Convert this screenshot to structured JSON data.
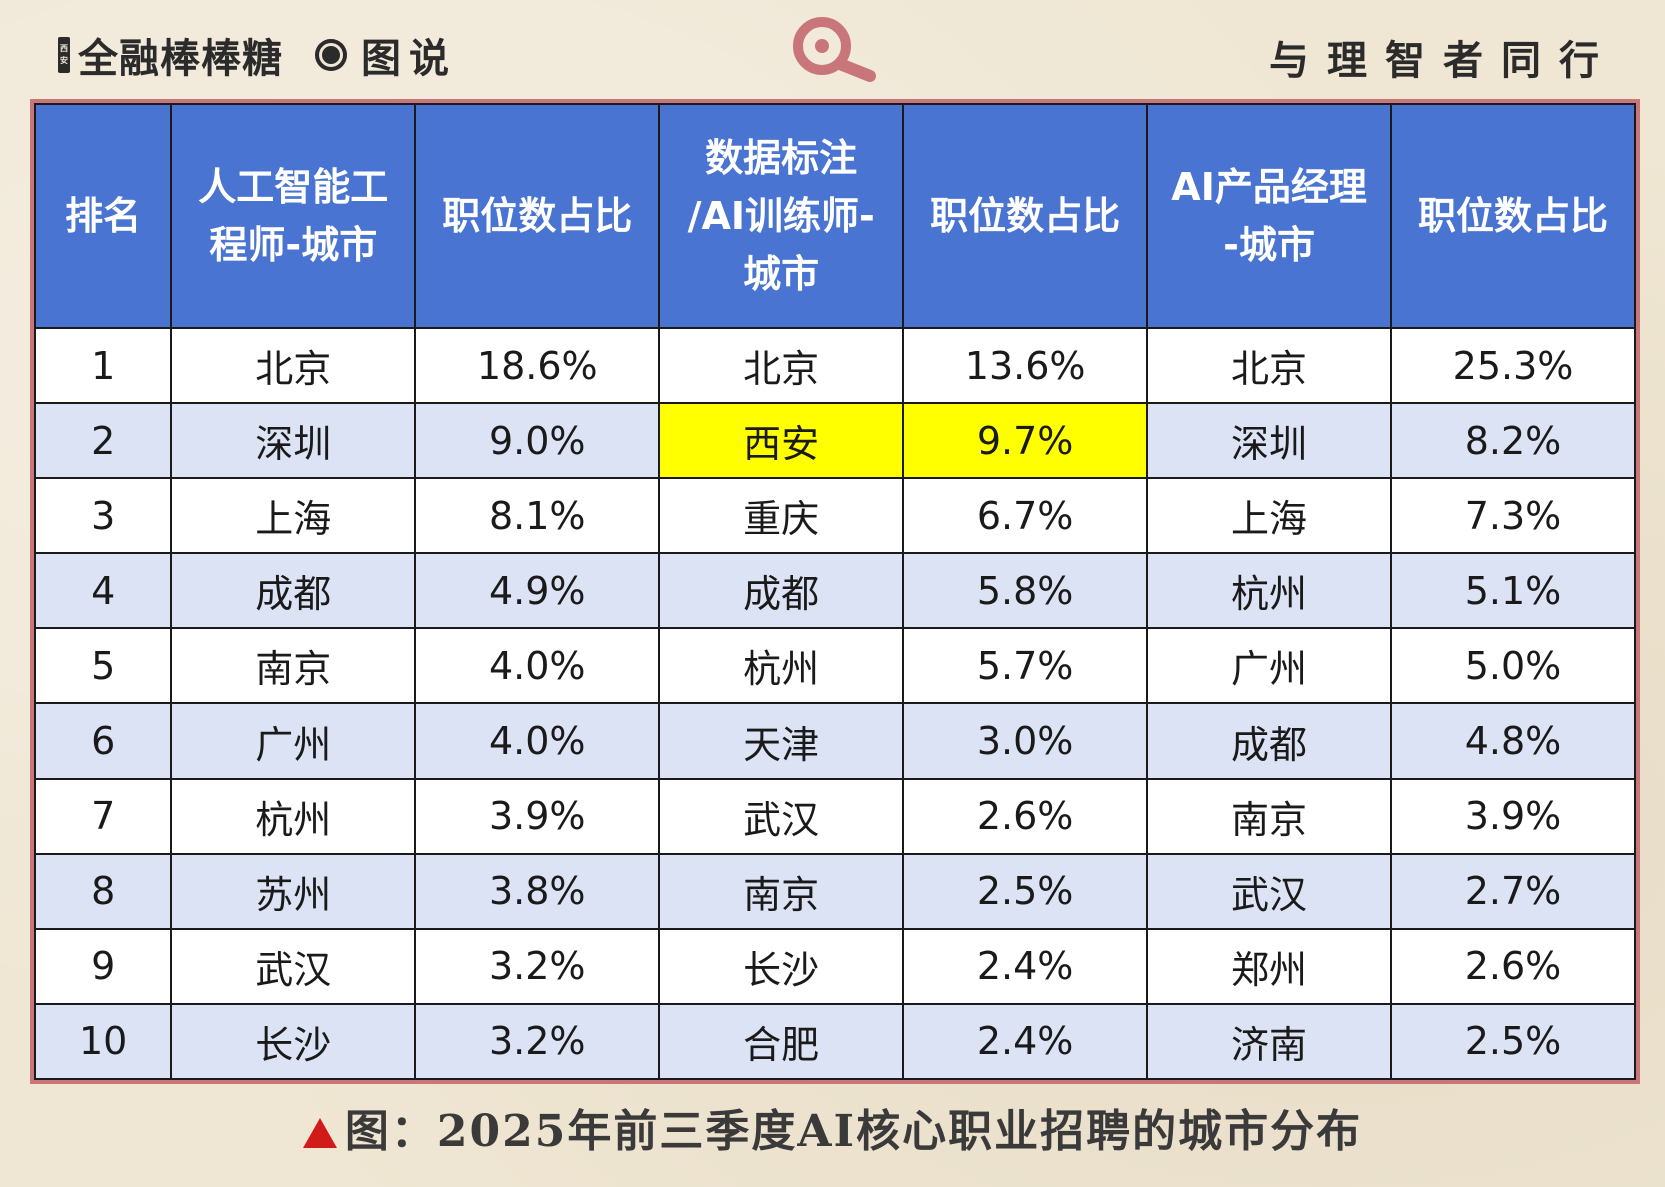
{
  "header": {
    "brand_badge_top": "西",
    "brand_badge_bottom": "安",
    "brand_name": "全融棒棒糖",
    "brand_sub": "图说",
    "motto": "与理智者同行",
    "colors": {
      "accent": "#c9767a",
      "text": "#2b2b2b"
    }
  },
  "chart_data": {
    "type": "table",
    "columns": [
      "排名",
      "人工智能工程师-城市",
      "职位数占比",
      "数据标注/AI训练师-城市",
      "职位数占比",
      "AI产品经理-城市",
      "职位数占比"
    ],
    "rows": [
      [
        "1",
        "北京",
        "18.6%",
        "北京",
        "13.6%",
        "北京",
        "25.3%"
      ],
      [
        "2",
        "深圳",
        "9.0%",
        "西安",
        "9.7%",
        "深圳",
        "8.2%"
      ],
      [
        "3",
        "上海",
        "8.1%",
        "重庆",
        "6.7%",
        "上海",
        "7.3%"
      ],
      [
        "4",
        "成都",
        "4.9%",
        "成都",
        "5.8%",
        "杭州",
        "5.1%"
      ],
      [
        "5",
        "南京",
        "4.0%",
        "杭州",
        "5.7%",
        "广州",
        "5.0%"
      ],
      [
        "6",
        "广州",
        "4.0%",
        "天津",
        "3.0%",
        "成都",
        "4.8%"
      ],
      [
        "7",
        "杭州",
        "3.9%",
        "武汉",
        "2.6%",
        "南京",
        "3.9%"
      ],
      [
        "8",
        "苏州",
        "3.8%",
        "南京",
        "2.5%",
        "武汉",
        "2.7%"
      ],
      [
        "9",
        "武汉",
        "3.2%",
        "长沙",
        "2.4%",
        "郑州",
        "2.6%"
      ],
      [
        "10",
        "长沙",
        "3.2%",
        "合肥",
        "2.4%",
        "济南",
        "2.5%"
      ]
    ],
    "highlight": {
      "row": 1,
      "cols": [
        3,
        4
      ],
      "color": "#ffff00"
    },
    "colors": {
      "header_bg": "#4a74d1",
      "header_text": "#ffffff",
      "alt_row_bg": "#dce3f4",
      "frame": "#c9767a"
    }
  },
  "caption": {
    "text": "图：2025年前三季度AI核心职业招聘的城市分布",
    "marker_color": "#d11a1a"
  }
}
